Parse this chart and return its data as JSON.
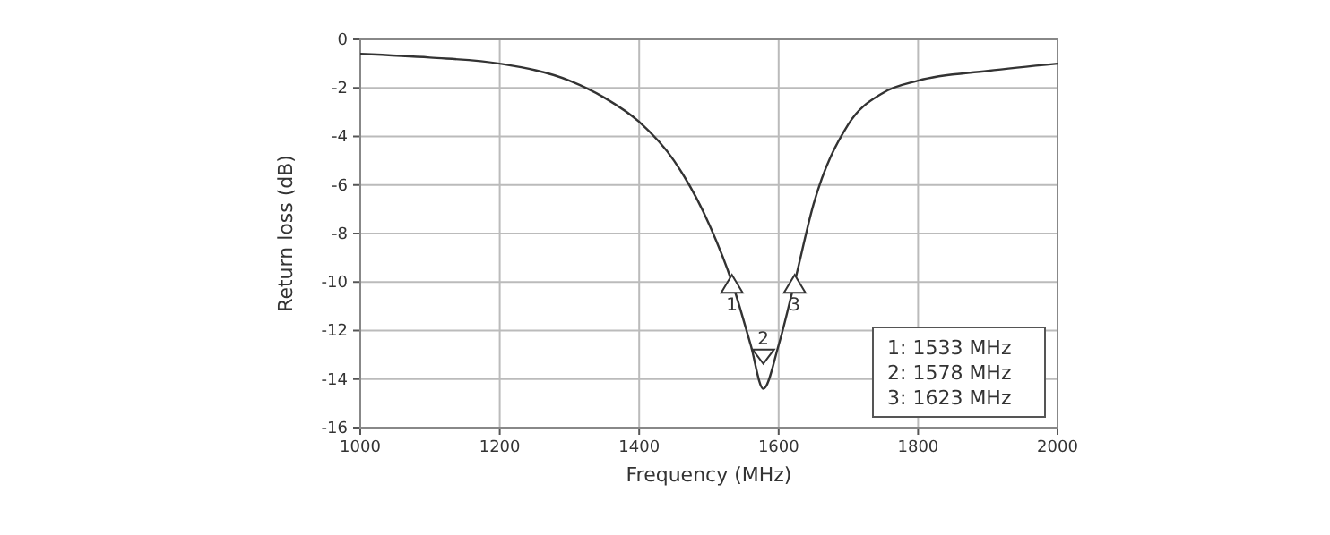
{
  "chart_data": {
    "type": "line",
    "xlabel": "Frequency (MHz)",
    "ylabel": "Return loss (dB)",
    "x": [
      1000,
      1100,
      1200,
      1300,
      1350,
      1400,
      1450,
      1500,
      1533,
      1560,
      1578,
      1600,
      1623,
      1650,
      1700,
      1750,
      1800,
      1900,
      2000
    ],
    "series": [
      {
        "color": "#333333",
        "values": [
          -0.6,
          -0.75,
          -1.0,
          -1.7,
          -2.4,
          -3.4,
          -5.0,
          -7.6,
          -10.0,
          -12.6,
          -14.4,
          -12.6,
          -10.0,
          -6.8,
          -3.5,
          -2.2,
          -1.7,
          -1.3,
          -1.0
        ]
      }
    ],
    "xlim": [
      1000,
      2000
    ],
    "xticks": [
      1000,
      1200,
      1400,
      1600,
      1800,
      2000
    ],
    "ylim": [
      -16,
      0
    ],
    "yticks": [
      0,
      -2,
      -4,
      -6,
      -8,
      -10,
      -12,
      -14,
      -16
    ],
    "grid": true,
    "marker": "none",
    "line_style": "solid",
    "annotations": [
      {
        "text": "1",
        "x": 1533,
        "y": -10
      },
      {
        "text": "2",
        "x": 1578,
        "y": -13
      },
      {
        "text": "3",
        "x": 1623,
        "y": -10
      },
      "1: 1533 MHz",
      "2: 1578 MHz",
      "3: 1623 MHz"
    ]
  }
}
